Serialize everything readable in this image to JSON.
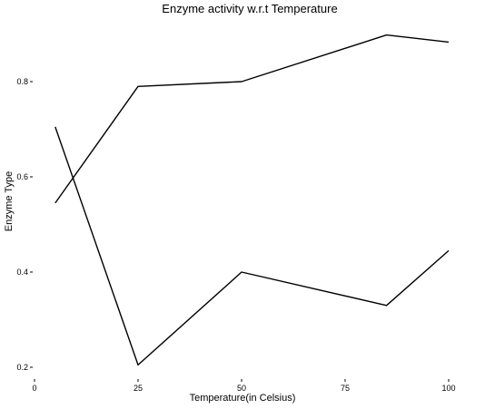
{
  "chart_data": {
    "type": "line",
    "title": "Enzyme activity w.r.t Temperature",
    "xlabel": "Temperature(in Celsius)",
    "ylabel": "Enzyme Type",
    "xlim": [
      0,
      100
    ],
    "ylim": [
      0.2,
      0.9
    ],
    "x_ticks": [
      0,
      25,
      50,
      75,
      100
    ],
    "x_tick_labels": [
      "0",
      "25",
      "50",
      "75",
      "100"
    ],
    "y_ticks": [
      0.2,
      0.4,
      0.6,
      0.8
    ],
    "y_tick_labels": [
      "0.2",
      "0.4",
      "0.6",
      "0.8"
    ],
    "grid": false,
    "legend": "none",
    "series": [
      {
        "x": [
          5,
          25,
          50,
          85,
          100
        ],
        "y": [
          0.545,
          0.79,
          0.8,
          0.898,
          0.883
        ]
      },
      {
        "x": [
          5,
          25,
          50,
          85,
          100
        ],
        "y": [
          0.705,
          0.205,
          0.4,
          0.33,
          0.445
        ]
      }
    ],
    "colors": [
      "#000000",
      "#000000"
    ]
  }
}
